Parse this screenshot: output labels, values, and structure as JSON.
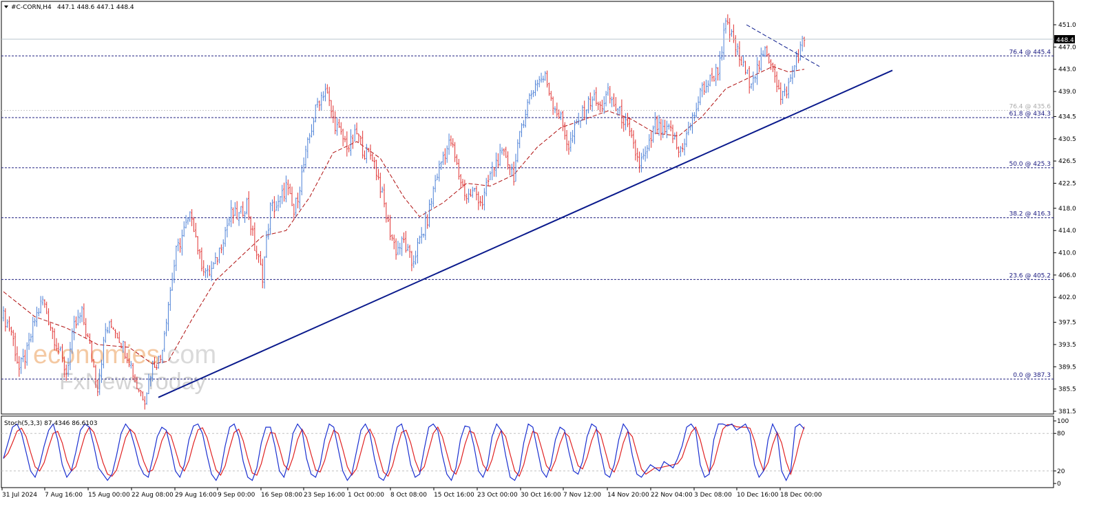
{
  "header": {
    "symbol": "#C-CORN,H4",
    "ohlc": "447.1 448.6 447.1 448.4"
  },
  "price_tag": "448.4",
  "watermark": {
    "brand1_a": "economies",
    "brand1_b": ".com",
    "brand2": "FxNewsToday"
  },
  "colors": {
    "bull": "#4a7fd6",
    "bear": "#e03030",
    "ma": "#b01010",
    "trend": "#0a1a8c",
    "fib": "#202080",
    "stoch_main": "#1a2fd0",
    "stoch_signal": "#e02020",
    "wm_orange": "#f3c49a"
  },
  "stoch": {
    "label": "Stoch(5,3,3) 87.4346 86.6103",
    "levels": [
      "100",
      "80",
      "20",
      "0"
    ]
  },
  "chart_data": {
    "type": "candlestick",
    "y_axis_ticks": [
      "451.0",
      "447.0",
      "443.0",
      "439.0",
      "434.5",
      "430.5",
      "426.5",
      "422.5",
      "418.0",
      "414.0",
      "410.0",
      "406.0",
      "402.0",
      "397.5",
      "393.5",
      "389.5",
      "385.5",
      "381.5"
    ],
    "ylim": [
      381.5,
      451.0
    ],
    "x_tick_labels": [
      "31 Jul 2024",
      "7 Aug 16:00",
      "15 Aug 00:00",
      "22 Aug 08:00",
      "29 Aug 16:00",
      "9 Sep 00:00",
      "16 Sep 08:00",
      "23 Sep 16:00",
      "1 Oct 00:00",
      "8 Oct 08:00",
      "15 Oct 16:00",
      "23 Oct 00:00",
      "30 Oct 16:00",
      "7 Nov 12:00",
      "14 Nov 20:00",
      "22 Nov 04:00",
      "3 Dec 08:00",
      "10 Dec 16:00",
      "18 Dec 00:00"
    ],
    "fib_levels": [
      {
        "label": "76.4 @ 445.4",
        "value": 445.4
      },
      {
        "label": "76.4 @ 435.6",
        "value": 435.6
      },
      {
        "label": "61.8 @ 434.3",
        "value": 434.3
      },
      {
        "label": "50.0 @ 425.3",
        "value": 425.3
      },
      {
        "label": "38.2 @ 416.3",
        "value": 416.3
      },
      {
        "label": "23.6 @ 405.2",
        "value": 405.2
      },
      {
        "label": "0.0 @ 387.3",
        "value": 387.3
      }
    ],
    "current_price": 448.4,
    "price_path": [
      [
        0,
        398.5
      ],
      [
        2,
        396.0
      ],
      [
        4,
        389.0
      ],
      [
        6,
        392.0
      ],
      [
        8,
        398.0
      ],
      [
        10,
        401.5
      ],
      [
        12,
        397.0
      ],
      [
        14,
        392.5
      ],
      [
        16,
        388.5
      ],
      [
        18,
        396.5
      ],
      [
        20,
        399.0
      ],
      [
        22,
        393.0
      ],
      [
        24,
        386.0
      ],
      [
        26,
        396.0
      ],
      [
        28,
        397.0
      ],
      [
        30,
        394.0
      ],
      [
        32,
        391.0
      ],
      [
        34,
        386.0
      ],
      [
        36,
        384.0
      ],
      [
        38,
        390.0
      ],
      [
        40,
        391.0
      ],
      [
        42,
        401.0
      ],
      [
        44,
        410.0
      ],
      [
        46,
        414.0
      ],
      [
        48,
        417.0
      ],
      [
        50,
        409.0
      ],
      [
        52,
        406.0
      ],
      [
        54,
        408.0
      ],
      [
        56,
        413.0
      ],
      [
        58,
        417.0
      ],
      [
        60,
        416.5
      ],
      [
        62,
        419.0
      ],
      [
        64,
        411.0
      ],
      [
        66,
        406.0
      ],
      [
        68,
        418.0
      ],
      [
        70,
        418.5
      ],
      [
        72,
        422.0
      ],
      [
        74,
        417.0
      ],
      [
        76,
        424.0
      ],
      [
        78,
        431.0
      ],
      [
        80,
        437.0
      ],
      [
        82,
        439.5
      ],
      [
        84,
        434.0
      ],
      [
        86,
        431.0
      ],
      [
        88,
        429.0
      ],
      [
        90,
        431.5
      ],
      [
        92,
        428.0
      ],
      [
        94,
        427.5
      ],
      [
        96,
        422.0
      ],
      [
        98,
        415.0
      ],
      [
        100,
        410.5
      ],
      [
        102,
        412.0
      ],
      [
        104,
        408.0
      ],
      [
        106,
        412.0
      ],
      [
        108,
        416.0
      ],
      [
        110,
        423.0
      ],
      [
        112,
        427.5
      ],
      [
        114,
        430.0
      ],
      [
        116,
        424.0
      ],
      [
        118,
        420.0
      ],
      [
        120,
        421.0
      ],
      [
        122,
        419.0
      ],
      [
        124,
        424.0
      ],
      [
        126,
        427.0
      ],
      [
        128,
        427.5
      ],
      [
        130,
        424.0
      ],
      [
        132,
        433.0
      ],
      [
        134,
        438.0
      ],
      [
        136,
        441.0
      ],
      [
        138,
        441.5
      ],
      [
        140,
        437.0
      ],
      [
        142,
        434.0
      ],
      [
        144,
        429.0
      ],
      [
        146,
        433.0
      ],
      [
        148,
        435.5
      ],
      [
        150,
        438.0
      ],
      [
        152,
        436.0
      ],
      [
        154,
        438.5
      ],
      [
        156,
        436.0
      ],
      [
        158,
        434.0
      ],
      [
        160,
        430.0
      ],
      [
        162,
        426.0
      ],
      [
        164,
        428.0
      ],
      [
        166,
        433.0
      ],
      [
        168,
        431.5
      ],
      [
        170,
        432.0
      ],
      [
        172,
        428.0
      ],
      [
        174,
        431.0
      ],
      [
        176,
        435.0
      ],
      [
        178,
        439.5
      ],
      [
        180,
        441.0
      ],
      [
        182,
        443.0
      ],
      [
        184,
        451.0
      ],
      [
        186,
        448.0
      ],
      [
        188,
        444.0
      ],
      [
        190,
        441.0
      ],
      [
        192,
        443.0
      ],
      [
        194,
        446.0
      ],
      [
        196,
        444.0
      ],
      [
        198,
        437.5
      ],
      [
        200,
        440.0
      ],
      [
        202,
        445.0
      ],
      [
        204,
        448.4
      ]
    ],
    "moving_average": [
      [
        0,
        403.0
      ],
      [
        8,
        398.5
      ],
      [
        16,
        396.5
      ],
      [
        24,
        393.5
      ],
      [
        32,
        393.0
      ],
      [
        38,
        390.0
      ],
      [
        42,
        390.5
      ],
      [
        48,
        398.0
      ],
      [
        54,
        405.0
      ],
      [
        60,
        409.0
      ],
      [
        66,
        413.0
      ],
      [
        72,
        414.0
      ],
      [
        78,
        420.0
      ],
      [
        84,
        428.0
      ],
      [
        90,
        430.0
      ],
      [
        96,
        427.0
      ],
      [
        102,
        420.0
      ],
      [
        106,
        416.5
      ],
      [
        112,
        419.0
      ],
      [
        118,
        422.5
      ],
      [
        124,
        422.0
      ],
      [
        130,
        424.0
      ],
      [
        136,
        429.0
      ],
      [
        142,
        432.5
      ],
      [
        148,
        434.0
      ],
      [
        154,
        435.5
      ],
      [
        160,
        434.0
      ],
      [
        166,
        431.5
      ],
      [
        172,
        431.0
      ],
      [
        178,
        434.5
      ],
      [
        184,
        439.5
      ],
      [
        190,
        441.5
      ],
      [
        196,
        443.5
      ],
      [
        200,
        442.5
      ],
      [
        204,
        443.0
      ]
    ],
    "trend_lines": [
      {
        "style": "solid",
        "from": [
          "22 Aug 08:00",
          384.0
        ],
        "to": [
          "beyond 18 Dec 00:00",
          442.8
        ]
      },
      {
        "style": "dashed",
        "from": [
          "10 Dec 16:00",
          451.0
        ],
        "to": [
          "beyond 18 Dec 00:00",
          443.5
        ]
      }
    ],
    "stochastic": {
      "k": [
        40,
        65,
        90,
        95,
        80,
        50,
        20,
        10,
        30,
        60,
        85,
        95,
        70,
        30,
        10,
        20,
        50,
        85,
        95,
        90,
        60,
        25,
        15,
        5,
        15,
        45,
        80,
        95,
        85,
        60,
        30,
        15,
        10,
        40,
        75,
        90,
        85,
        55,
        20,
        10,
        30,
        70,
        92,
        95,
        80,
        45,
        15,
        5,
        20,
        60,
        90,
        95,
        75,
        35,
        10,
        5,
        25,
        65,
        90,
        90,
        60,
        20,
        10,
        35,
        80,
        95,
        85,
        40,
        15,
        10,
        30,
        70,
        95,
        90,
        55,
        20,
        5,
        15,
        50,
        85,
        95,
        80,
        40,
        10,
        5,
        20,
        60,
        90,
        95,
        70,
        30,
        10,
        15,
        55,
        90,
        95,
        85,
        45,
        15,
        5,
        25,
        70,
        92,
        90,
        60,
        20,
        10,
        30,
        75,
        95,
        85,
        45,
        10,
        5,
        20,
        65,
        95,
        90,
        55,
        20,
        10,
        30,
        70,
        90,
        85,
        50,
        20,
        15,
        35,
        75,
        95,
        90,
        50,
        15,
        10,
        30,
        70,
        95,
        85,
        45,
        15,
        10,
        20,
        30,
        25,
        20,
        35,
        30,
        25,
        40,
        60,
        90,
        95,
        85,
        30,
        10,
        15,
        70,
        95,
        95,
        92,
        95,
        85,
        90,
        95,
        80,
        30,
        10,
        20,
        70,
        95,
        80,
        20,
        5,
        20,
        90,
        95,
        87
      ]
    }
  }
}
